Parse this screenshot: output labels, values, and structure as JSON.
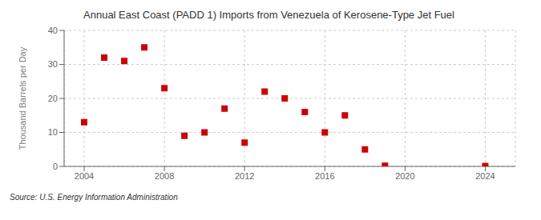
{
  "chart_data": {
    "type": "scatter",
    "title": "Annual East Coast (PADD 1) Imports from Venezuela of Kerosene-Type Jet Fuel",
    "ylabel": "Thousand Barrels per Day",
    "annotation": "Source: U.S. Energy Information Administration",
    "x": [
      2004,
      2005,
      2006,
      2007,
      2008,
      2009,
      2010,
      2011,
      2012,
      2013,
      2014,
      2015,
      2016,
      2017,
      2018,
      2019,
      2024
    ],
    "values": [
      13,
      32,
      31,
      35,
      23,
      9,
      10,
      17,
      7,
      22,
      20,
      16,
      10,
      15,
      5,
      0.2,
      0.1
    ],
    "color": "#cc0000",
    "marker": "square",
    "xlim": [
      2003,
      2025.5
    ],
    "ylim": [
      0,
      40
    ],
    "xticks": [
      2004,
      2008,
      2012,
      2016,
      2020,
      2024
    ],
    "yticks": [
      0,
      10,
      20,
      30,
      40
    ],
    "grid": true
  }
}
